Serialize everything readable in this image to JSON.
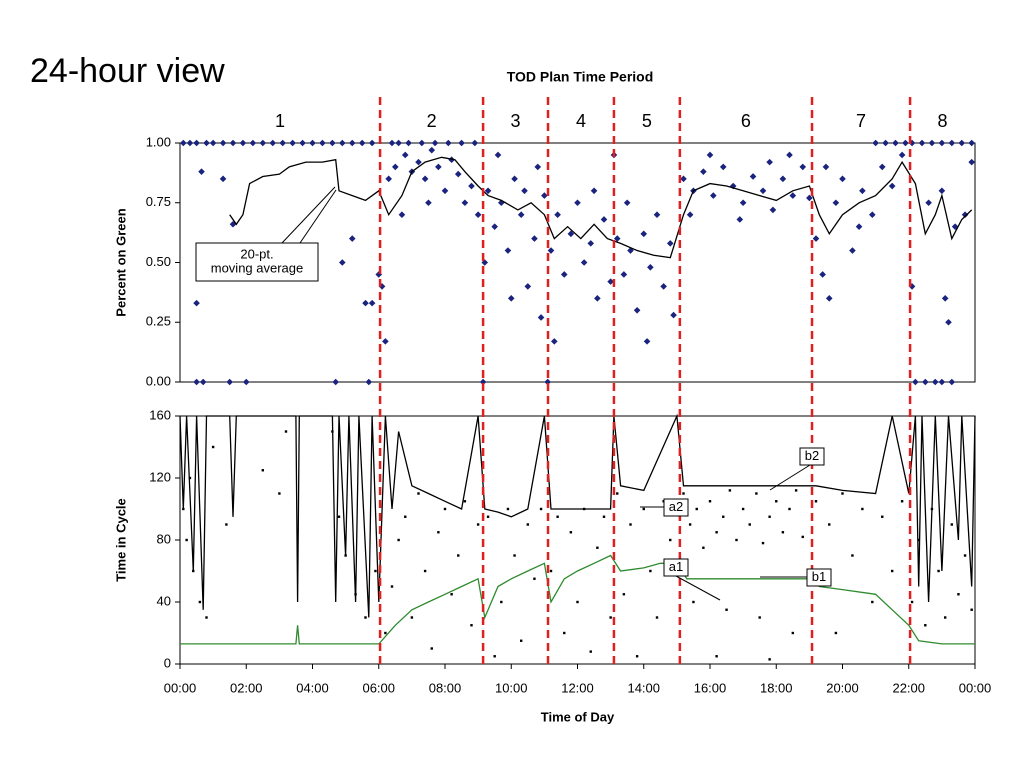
{
  "slide_title": "24-hour view",
  "chart_data": [
    {
      "type": "scatter",
      "title": "TOD Plan Time Period",
      "periods": {
        "bounds": [
          6.04,
          9.15,
          11.11,
          13.1,
          15.09,
          19.08,
          22.04
        ],
        "labels": [
          "1",
          "2",
          "3",
          "4",
          "5",
          "6",
          "7",
          "8"
        ],
        "color": "#e02020"
      },
      "ylabel": "Percent on Green",
      "xlim": [
        0,
        24
      ],
      "ylim": [
        0,
        1
      ],
      "yticks": [
        {
          "value": 0,
          "label": "0.00"
        },
        {
          "value": 0.25,
          "label": "0.25"
        },
        {
          "value": 0.5,
          "label": "0.50"
        },
        {
          "value": 0.75,
          "label": "0.75"
        },
        {
          "value": 1,
          "label": "1.00"
        }
      ],
      "series": [
        {
          "mode": "markers",
          "color": "#1a237e",
          "x": [
            0.1,
            0.3,
            0.5,
            0.8,
            1.0,
            1.3,
            1.6,
            1.9,
            2.2,
            2.5,
            2.8,
            3.1,
            3.4,
            3.7,
            4.0,
            4.3,
            4.6,
            4.9,
            5.2,
            5.5,
            5.8,
            0.5,
            0.5,
            0.65,
            0.7,
            1.3,
            1.5,
            1.6,
            2.0,
            4.7,
            4.9,
            5.2,
            5.6,
            5.8,
            5.7,
            6.0,
            6.1,
            6.2,
            6.3,
            6.5,
            6.8,
            7.0,
            7.2,
            7.4,
            7.6,
            7.8,
            8.0,
            8.2,
            8.4,
            8.6,
            8.8,
            9.0,
            6.7,
            7.5,
            6.4,
            6.6,
            6.9,
            7.3,
            7.7,
            8.1,
            8.5,
            8.9,
            9.2,
            9.3,
            9.5,
            9.7,
            9.9,
            10.1,
            10.3,
            10.5,
            10.7,
            10.9,
            9.6,
            10.0,
            10.4,
            9.15,
            11.0,
            10.8,
            11.2,
            11.4,
            11.6,
            11.8,
            12.0,
            12.2,
            12.4,
            12.6,
            12.8,
            13.0,
            11.3,
            12.5,
            11.1,
            13.2,
            13.4,
            13.6,
            13.8,
            14.0,
            14.2,
            14.4,
            14.6,
            14.8,
            14.1,
            13.5,
            14.9,
            13.1,
            15.2,
            15.5,
            15.8,
            16.1,
            16.4,
            16.7,
            17.0,
            17.3,
            17.6,
            17.9,
            18.2,
            18.5,
            18.8,
            15.4,
            16.0,
            16.9,
            17.8,
            18.4,
            19.0,
            19.2,
            19.4,
            19.6,
            19.8,
            20.0,
            20.3,
            20.6,
            20.9,
            21.2,
            21.5,
            21.8,
            19.5,
            20.5,
            21.0,
            21.3,
            21.6,
            21.9,
            22.1,
            22.4,
            22.7,
            23.0,
            23.3,
            23.6,
            23.9,
            22.1,
            22.2,
            22.5,
            22.8,
            23.0,
            22.6,
            23.0,
            23.1,
            23.2,
            23.4,
            23.7,
            23.9,
            23.3
          ],
          "values": [
            1,
            1,
            1,
            1,
            1,
            1,
            1,
            1,
            1,
            1,
            1,
            1,
            1,
            1,
            1,
            1,
            1,
            1,
            1,
            1,
            1,
            0.33,
            0,
            0.88,
            0,
            0.85,
            0,
            0.66,
            0,
            0,
            0.5,
            0.6,
            0.33,
            0.33,
            0,
            0.45,
            0.4,
            0.17,
            0.85,
            0.9,
            0.95,
            0.88,
            0.92,
            0.85,
            0.97,
            0.9,
            0.8,
            0.93,
            0.87,
            0.75,
            0.82,
            0.7,
            0.7,
            0.75,
            1,
            1,
            1,
            1,
            1,
            1,
            1,
            1,
            0.5,
            0.8,
            0.65,
            0.75,
            0.55,
            0.85,
            0.7,
            0.4,
            0.6,
            0.27,
            0.95,
            0.35,
            0.8,
            0,
            0.78,
            0.9,
            0.55,
            0.7,
            0.45,
            0.62,
            0.75,
            0.5,
            0.58,
            0.35,
            0.68,
            0.42,
            0.17,
            0.8,
            0,
            0.6,
            0.45,
            0.55,
            0.3,
            0.62,
            0.48,
            0.7,
            0.4,
            0.58,
            0.17,
            0.75,
            0.28,
            0.95,
            0.85,
            0.8,
            0.88,
            0.78,
            0.9,
            0.82,
            0.75,
            0.86,
            0.8,
            0.72,
            0.85,
            0.78,
            0.9,
            0.7,
            0.95,
            0.68,
            0.92,
            0.95,
            0.77,
            0.6,
            0.45,
            0.35,
            0.75,
            0.85,
            0.55,
            0.8,
            0.7,
            0.9,
            0.82,
            0.95,
            0.9,
            0.65,
            1,
            1,
            1,
            1,
            1,
            1,
            1,
            1,
            1,
            1,
            1,
            0.4,
            0,
            0,
            0,
            0,
            0.75,
            0.8,
            0.35,
            0.25,
            0.65,
            0.7,
            0.92,
            0
          ]
        },
        {
          "mode": "line",
          "color": "#000000",
          "x": [
            1.5,
            1.7,
            1.9,
            2.1,
            2.5,
            3.0,
            3.3,
            3.8,
            4.3,
            4.7,
            4.8,
            5.2,
            5.6,
            6.0,
            6.3,
            6.7,
            7.0,
            7.4,
            7.9,
            8.3,
            8.6,
            9.0,
            9.3,
            9.7,
            10.2,
            10.6,
            11.0,
            11.3,
            11.7,
            12.1,
            12.5,
            12.9,
            13.3,
            13.8,
            14.3,
            14.8,
            15.2,
            15.5,
            16.0,
            16.5,
            17.0,
            17.5,
            18.0,
            18.5,
            19.0,
            19.3,
            19.6,
            20.0,
            20.5,
            21.0,
            21.5,
            21.8,
            22.2,
            22.5,
            22.8,
            23.0,
            23.3,
            23.6,
            23.9
          ],
          "values": [
            0.7,
            0.66,
            0.7,
            0.83,
            0.86,
            0.87,
            0.9,
            0.92,
            0.92,
            0.93,
            0.8,
            0.78,
            0.76,
            0.8,
            0.7,
            0.78,
            0.88,
            0.92,
            0.94,
            0.93,
            0.88,
            0.82,
            0.78,
            0.76,
            0.72,
            0.75,
            0.7,
            0.6,
            0.65,
            0.6,
            0.66,
            0.6,
            0.58,
            0.55,
            0.53,
            0.52,
            0.7,
            0.8,
            0.83,
            0.82,
            0.8,
            0.78,
            0.76,
            0.8,
            0.82,
            0.7,
            0.62,
            0.7,
            0.75,
            0.78,
            0.85,
            0.92,
            0.83,
            0.62,
            0.7,
            0.78,
            0.6,
            0.68,
            0.72
          ]
        }
      ],
      "annotations": [
        {
          "lines": [
            "20-pt.",
            "moving average"
          ]
        }
      ]
    },
    {
      "type": "scatter",
      "xlabel": "Time of Day",
      "ylabel": "Time in Cycle",
      "xlim": [
        0,
        24
      ],
      "ylim": [
        0,
        160
      ],
      "xticks": [
        {
          "value": 0,
          "label": "00:00"
        },
        {
          "value": 2,
          "label": "02:00"
        },
        {
          "value": 4,
          "label": "04:00"
        },
        {
          "value": 6,
          "label": "06:00"
        },
        {
          "value": 8,
          "label": "08:00"
        },
        {
          "value": 10,
          "label": "10:00"
        },
        {
          "value": 12,
          "label": "12:00"
        },
        {
          "value": 14,
          "label": "14:00"
        },
        {
          "value": 16,
          "label": "16:00"
        },
        {
          "value": 18,
          "label": "18:00"
        },
        {
          "value": 20,
          "label": "20:00"
        },
        {
          "value": 22,
          "label": "22:00"
        },
        {
          "value": 24,
          "label": "00:00"
        }
      ],
      "yticks": [
        0,
        40,
        80,
        120,
        160
      ],
      "series": [
        {
          "mode": "markers",
          "color": "#000000",
          "x": [
            0.1,
            0.2,
            0.3,
            0.4,
            0.6,
            0.8,
            1.0,
            1.4,
            2.5,
            3.0,
            3.2,
            4.6,
            4.8,
            5.0,
            5.3,
            5.6,
            5.9,
            6.2,
            6.4,
            6.6,
            6.8,
            7.0,
            7.2,
            7.4,
            7.6,
            7.8,
            8.0,
            8.2,
            8.4,
            8.6,
            8.8,
            9.0,
            9.3,
            9.5,
            9.7,
            9.9,
            10.1,
            10.3,
            10.5,
            10.7,
            10.9,
            11.2,
            11.4,
            11.6,
            11.8,
            12.0,
            12.2,
            12.4,
            12.6,
            12.8,
            13.0,
            13.2,
            13.4,
            13.6,
            13.8,
            14.0,
            14.2,
            14.4,
            14.6,
            14.8,
            15.2,
            15.4,
            15.6,
            15.8,
            16.0,
            16.2,
            16.4,
            16.6,
            16.8,
            17.0,
            17.2,
            17.4,
            17.6,
            17.8,
            18.0,
            18.2,
            18.4,
            18.6,
            18.8,
            15.5,
            16.5,
            17.5,
            18.5,
            16.2,
            17.8,
            19.2,
            19.4,
            19.6,
            19.8,
            20.0,
            20.3,
            20.6,
            20.9,
            21.2,
            21.5,
            21.8,
            22.1,
            22.3,
            22.5,
            22.7,
            22.9,
            23.1,
            23.3,
            23.5,
            23.7,
            23.9
          ],
          "values": [
            100,
            80,
            120,
            60,
            40,
            30,
            140,
            90,
            125,
            110,
            150,
            150,
            95,
            70,
            45,
            30,
            60,
            20,
            50,
            80,
            95,
            30,
            110,
            60,
            10,
            85,
            100,
            45,
            70,
            105,
            25,
            90,
            95,
            5,
            40,
            100,
            70,
            15,
            90,
            55,
            100,
            60,
            95,
            20,
            85,
            40,
            100,
            8,
            75,
            95,
            30,
            110,
            45,
            90,
            5,
            100,
            60,
            30,
            105,
            80,
            110,
            90,
            100,
            75,
            105,
            85,
            95,
            112,
            80,
            100,
            90,
            110,
            78,
            95,
            105,
            85,
            100,
            112,
            82,
            40,
            35,
            30,
            20,
            5,
            3,
            105,
            60,
            90,
            20,
            110,
            70,
            100,
            40,
            95,
            60,
            105,
            40,
            80,
            25,
            100,
            60,
            30,
            90,
            45,
            70,
            35
          ]
        },
        {
          "mode": "line",
          "color": "#000000",
          "x": [
            0,
            0.1,
            0.2,
            0.4,
            0.5,
            0.7,
            0.8,
            1.5,
            1.6,
            1.7,
            3.5,
            3.55,
            3.6,
            4.6,
            4.7,
            4.8,
            5.0,
            5.1,
            5.3,
            5.4,
            5.7,
            5.8,
            6.0,
            6.2,
            6.4,
            6.6,
            7.0,
            7.5,
            8.0,
            8.5,
            9.0,
            9.2,
            9.6,
            10.0,
            10.5,
            11.0,
            11.2,
            12.0,
            13.0,
            13.1,
            13.3,
            14.0,
            15.0,
            15.2,
            16.0,
            17.0,
            18.0,
            19.0,
            19.2,
            20.0,
            21.0,
            21.5,
            22.0,
            22.2,
            22.3,
            22.4,
            22.6,
            22.8,
            23.0,
            23.2,
            23.5,
            23.6,
            23.9,
            24
          ],
          "values": [
            160,
            100,
            160,
            60,
            160,
            35,
            160,
            160,
            95,
            160,
            160,
            40,
            160,
            160,
            40,
            160,
            70,
            160,
            40,
            160,
            30,
            160,
            40,
            160,
            100,
            150,
            115,
            110,
            105,
            100,
            160,
            100,
            98,
            95,
            100,
            160,
            100,
            100,
            100,
            160,
            115,
            112,
            160,
            115,
            115,
            115,
            115,
            115,
            115,
            112,
            110,
            160,
            110,
            160,
            50,
            160,
            40,
            160,
            60,
            160,
            80,
            160,
            50,
            160
          ]
        },
        {
          "mode": "line",
          "color": "#2e8b2e",
          "x": [
            0,
            3.5,
            3.55,
            3.6,
            6.0,
            6.5,
            7.0,
            7.5,
            8.0,
            8.5,
            9.0,
            9.2,
            9.6,
            10.0,
            10.5,
            11.0,
            11.2,
            11.6,
            12.0,
            12.5,
            13.0,
            13.3,
            14.0,
            14.5,
            15.0,
            15.3,
            16,
            17,
            18,
            19,
            19.3,
            20,
            21,
            21.5,
            22,
            22.3,
            23,
            24
          ],
          "values": [
            13,
            13,
            25,
            13,
            13,
            25,
            35,
            40,
            45,
            50,
            55,
            30,
            50,
            55,
            60,
            65,
            40,
            55,
            60,
            65,
            70,
            60,
            62,
            65,
            65,
            55,
            55,
            55,
            55,
            55,
            50,
            48,
            45,
            35,
            25,
            15,
            13,
            13
          ]
        }
      ],
      "annotations": [
        {
          "lines": [
            "b2"
          ]
        },
        {
          "lines": [
            "a2"
          ]
        },
        {
          "lines": [
            "a1"
          ]
        },
        {
          "lines": [
            "b1"
          ]
        }
      ]
    }
  ]
}
